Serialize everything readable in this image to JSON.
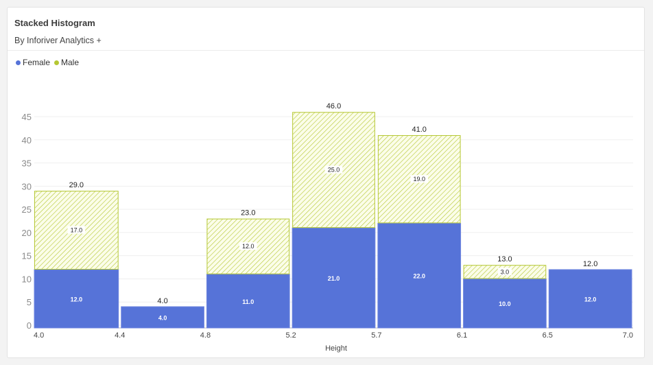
{
  "header": {
    "title": "Stacked Histogram",
    "subtitle": "By Inforiver Analytics +"
  },
  "colors": {
    "female": "#5673d8",
    "male": "#b5c733",
    "male_bg": "#fbfde9"
  },
  "chart_data": {
    "type": "bar",
    "title": "Stacked Histogram",
    "xlabel": "Height",
    "ylabel": "",
    "ylim": [
      0,
      45
    ],
    "yticks": [
      0,
      5,
      10,
      15,
      20,
      25,
      30,
      35,
      40,
      45
    ],
    "bin_edges": [
      "4.0",
      "4.4",
      "4.8",
      "5.2",
      "5.7",
      "6.1",
      "6.5",
      "7.0"
    ],
    "legend_position": "top-left",
    "series": [
      {
        "name": "Female",
        "values": [
          12,
          4,
          11,
          21,
          22,
          10,
          12
        ],
        "labels": [
          "12.0",
          "4.0",
          "11.0",
          "21.0",
          "22.0",
          "10.0",
          "12.0"
        ]
      },
      {
        "name": "Male",
        "values": [
          17,
          0,
          12,
          25,
          19,
          3,
          0
        ],
        "labels": [
          "17.0",
          "",
          "12.0",
          "25.0",
          "19.0",
          "3.0",
          ""
        ]
      }
    ],
    "totals": [
      "29.0",
      "4.0",
      "23.0",
      "46.0",
      "41.0",
      "13.0",
      "12.0"
    ]
  }
}
